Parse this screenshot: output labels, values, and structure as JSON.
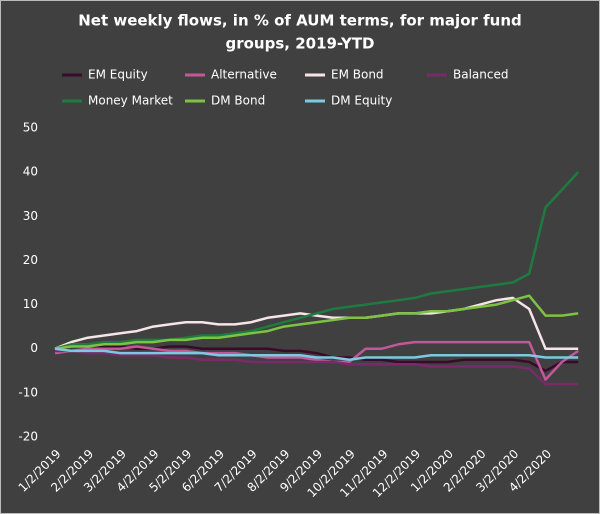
{
  "chart_data": {
    "type": "line",
    "title": [
      "Net weekly flows, in % of AUM terms, for major fund",
      "groups, 2019-YTD"
    ],
    "categories": [
      "1/2/2019",
      null,
      "2/2/2019",
      null,
      "3/2/2019",
      null,
      "4/2/2019",
      null,
      "5/2/2019",
      null,
      "6/2/2019",
      null,
      "7/2/2019",
      null,
      "8/2/2019",
      null,
      "9/2/2019",
      null,
      "10/2/2019",
      null,
      "11/2/2019",
      null,
      "12/2/2019",
      null,
      "1/2/2020",
      null,
      "2/2/2020",
      null,
      "3/2/2020",
      null,
      "4/2/2020",
      null,
      null
    ],
    "series": [
      {
        "name": "EM Equity",
        "color": "#3a0a2a",
        "values": [
          0,
          0.5,
          0.5,
          0.5,
          0.5,
          0,
          0,
          0.5,
          0.5,
          0,
          0,
          0,
          0,
          0,
          -0.5,
          -0.5,
          -1,
          -2,
          -2,
          -2.5,
          -2.5,
          -3,
          -3,
          -3,
          -3,
          -2.5,
          -2.5,
          -2.5,
          -2.5,
          -3,
          -5,
          -3,
          -3
        ]
      },
      {
        "name": "Alternative",
        "color": "#c2579a",
        "values": [
          -1,
          -0.5,
          0,
          0,
          0,
          0.5,
          0,
          -0.5,
          -0.5,
          -1,
          -1,
          -1,
          -1.5,
          -2,
          -2,
          -2,
          -2.5,
          -3,
          -3,
          0,
          0,
          1,
          1.5,
          1.5,
          1.5,
          1.5,
          1.5,
          1.5,
          1.5,
          1.5,
          -7,
          -3,
          -0.5
        ]
      },
      {
        "name": "EM Bond",
        "color": "#f6e4e6",
        "values": [
          0,
          1.5,
          2.5,
          3,
          3.5,
          4,
          5,
          5.5,
          6,
          6,
          5.5,
          5.5,
          6,
          7,
          7.5,
          8,
          7.5,
          7,
          7,
          7,
          7.5,
          8,
          8,
          8,
          8.5,
          9,
          10,
          11,
          11.5,
          9,
          0,
          0,
          0
        ]
      },
      {
        "name": "Balanced",
        "color": "#7a2a6a",
        "values": [
          -0.5,
          -0.5,
          -1,
          -1,
          -1.5,
          -1.5,
          -1.5,
          -2,
          -2,
          -2.5,
          -2.5,
          -2.5,
          -3,
          -3,
          -3,
          -3,
          -3,
          -3,
          -3.5,
          -3.5,
          -3.5,
          -3.5,
          -3.5,
          -4,
          -4,
          -4,
          -4,
          -4,
          -4,
          -4.5,
          -8,
          -8,
          -8
        ]
      },
      {
        "name": "Money Market",
        "color": "#1e7b40",
        "values": [
          0,
          1,
          1,
          1.5,
          1.5,
          2,
          2,
          2,
          2.5,
          3,
          3,
          3.5,
          4,
          5,
          6,
          7,
          8,
          9,
          9.5,
          10,
          10.5,
          11,
          11.5,
          12.5,
          13,
          13.5,
          14,
          14.5,
          15,
          17,
          32,
          36,
          40
        ]
      },
      {
        "name": "DM Bond",
        "color": "#7dc242",
        "values": [
          0,
          0.5,
          0.5,
          1,
          1,
          1.5,
          1.5,
          2,
          2,
          2.5,
          2.5,
          3,
          3.5,
          4,
          5,
          5.5,
          6,
          6.5,
          7,
          7,
          7.5,
          8,
          8,
          8.5,
          8.5,
          9,
          9.5,
          10,
          11,
          12,
          7.5,
          7.5,
          8
        ]
      },
      {
        "name": "DM Equity",
        "color": "#7ec8e3",
        "values": [
          0,
          -0.5,
          -0.5,
          -0.5,
          -1,
          -1,
          -1,
          -1,
          -1,
          -1,
          -1.5,
          -1.5,
          -1.5,
          -1.5,
          -1.5,
          -1.5,
          -2,
          -2,
          -2.5,
          -2,
          -2,
          -2,
          -2,
          -1.5,
          -1.5,
          -1.5,
          -1.5,
          -1.5,
          -1.5,
          -1.5,
          -2,
          -2,
          -2
        ]
      }
    ],
    "ylim": [
      -20,
      50
    ],
    "yticks": [
      -20,
      -10,
      0,
      10,
      20,
      30,
      40,
      50
    ]
  }
}
